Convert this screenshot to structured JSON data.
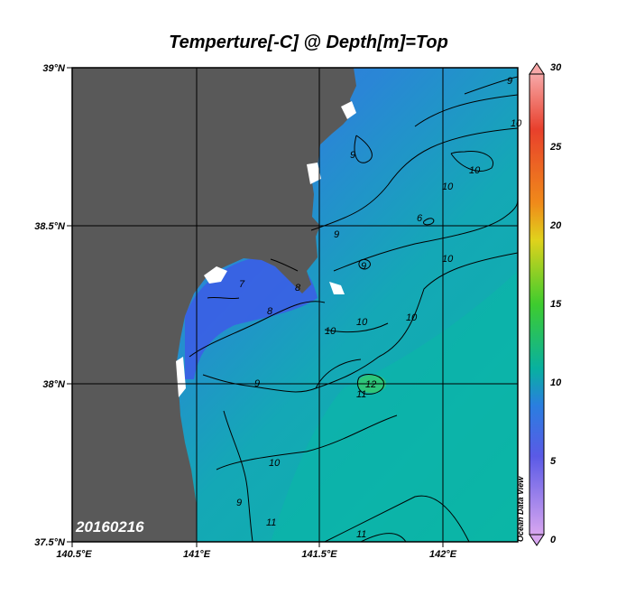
{
  "title": "Temperture[-C] @ Depth[m]=Top",
  "date_stamp": "20160216",
  "credit": "Ocean Data View",
  "map": {
    "lat_labels": [
      "39°N",
      "38.5°N",
      "38°N",
      "37.5°N"
    ],
    "lon_labels": [
      "140.5°E",
      "141°E",
      "141.5°E",
      "142°E"
    ],
    "colors": {
      "land": "#595959",
      "frame": "#000000",
      "grid": "#000000"
    }
  },
  "colorbar": {
    "ticks": [
      "30",
      "25",
      "20",
      "15",
      "10",
      "5",
      "0"
    ],
    "stops": [
      "#f7a8a8",
      "#e8402c",
      "#f08a1a",
      "#e0d21c",
      "#3ecc2e",
      "#08b0a0",
      "#2a7ee0",
      "#5a5ae6",
      "#d8a6f0"
    ]
  },
  "contour_labels": [
    "9",
    "10",
    "9",
    "10",
    "6",
    "9",
    "10",
    "10",
    "7",
    "8",
    "9",
    "8",
    "10",
    "10",
    "10",
    "12",
    "11",
    "9",
    "10",
    "9",
    "11",
    "11"
  ]
}
